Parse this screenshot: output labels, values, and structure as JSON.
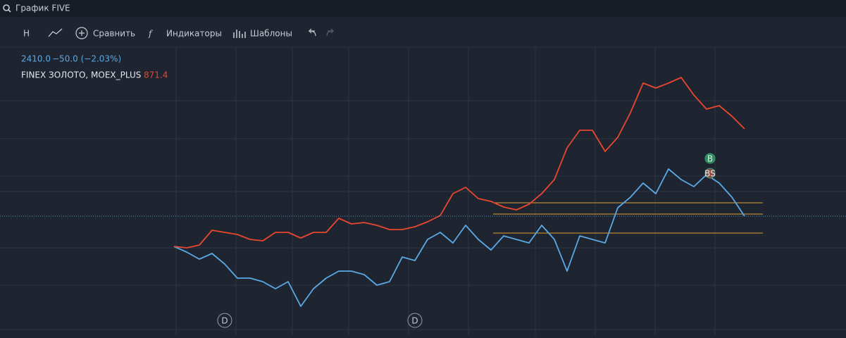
{
  "search": {
    "text": "График FIVE"
  },
  "toolbar": {
    "interval": "H",
    "compare": "Сравнить",
    "indicators": "Индикаторы",
    "templates": "Шаблоны"
  },
  "legend": {
    "price": "2410.0",
    "change": "−50.0 (−2.03%)",
    "compare_name": "FINEX ЗОЛОТО, MOEX_PLUS",
    "compare_price": "871.4"
  },
  "chart_data": {
    "type": "line",
    "categories": [
      null,
      null,
      null,
      null,
      null,
      null,
      null,
      null,
      null,
      null,
      null,
      null,
      null,
      null,
      null,
      null,
      null,
      null,
      null,
      null,
      null,
      null,
      null,
      null,
      null,
      null,
      null,
      null,
      null,
      null,
      null,
      null,
      null,
      null,
      null,
      null,
      null,
      null,
      null,
      null,
      null,
      null,
      null,
      null,
      null,
      null
    ],
    "ylim": [
      -12,
      28
    ],
    "series": [
      {
        "color": "#5aa9e6",
        "values": [
          0,
          -0.8,
          -1.8,
          -1,
          -2.5,
          -4.5,
          -4.5,
          -5,
          -6,
          -5,
          -8.5,
          -6,
          -4.5,
          -3.5,
          -3.5,
          -4,
          -5.5,
          -5,
          -1.5,
          -2,
          1,
          2,
          0.5,
          3,
          1,
          -0.5,
          1.5,
          1,
          0.5,
          3,
          1,
          -3.5,
          1.5,
          1,
          0.5,
          5.5,
          7,
          9,
          7.5,
          11,
          9.5,
          8.5,
          10.2,
          9,
          7,
          4.3
        ]
      },
      {
        "name": "FINEX ЗОЛОТО, MOEX_PLUS",
        "color": "#e8472f",
        "values": [
          0,
          -0.2,
          0.2,
          2.3,
          2,
          1.7,
          1,
          0.8,
          2,
          2,
          1.2,
          2,
          2,
          4,
          3.2,
          3.4,
          3,
          2.4,
          2.4,
          2.8,
          3.5,
          4.4,
          7.5,
          8.4,
          6.8,
          6.4,
          5.6,
          5.2,
          6,
          7.5,
          9.5,
          14,
          16.5,
          16.5,
          13.5,
          15.5,
          19,
          23.2,
          22.5,
          23.2,
          24,
          21.5,
          19.5,
          20,
          18.5,
          16.7
        ]
      }
    ],
    "levels": {
      "color": "#e0a030",
      "values": [
        6.2,
        4.6,
        1.9
      ]
    },
    "markers": [
      {
        "label": "D",
        "index": 4
      },
      {
        "label": "D",
        "index": 19
      }
    ],
    "annotations": [
      {
        "label": "B",
        "value": 12.5
      },
      {
        "label": "BS",
        "value": 10.4
      }
    ]
  }
}
